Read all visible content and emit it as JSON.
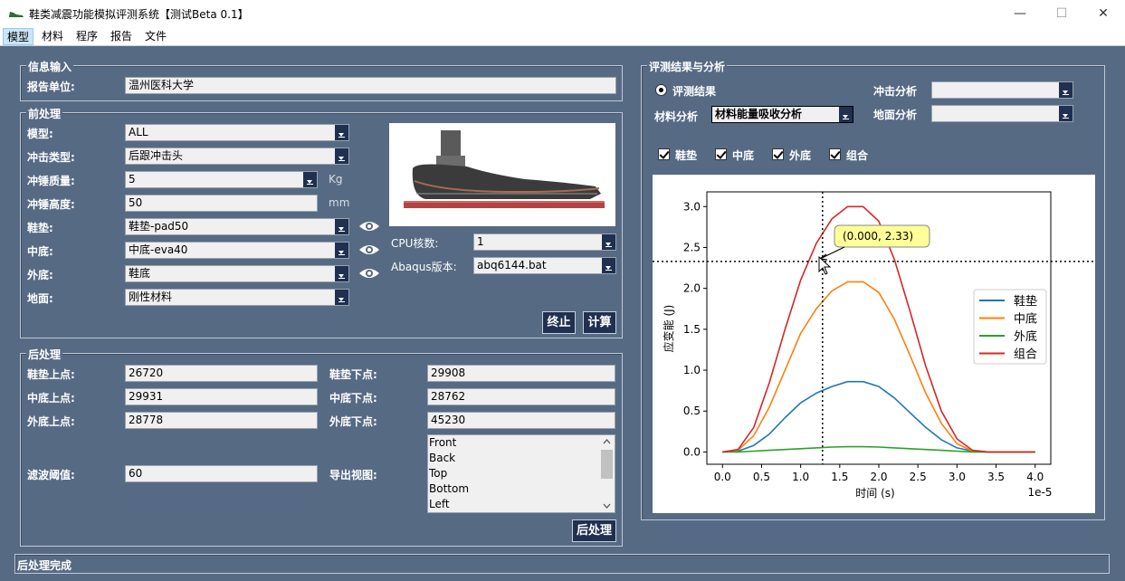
{
  "window": {
    "title": "鞋类减震功能模拟评测系统【测试Beta 0.1】",
    "minimize": "—",
    "maximize": "☐",
    "close": "✕"
  },
  "menu": [
    "模型",
    "材料",
    "程序",
    "报告",
    "文件"
  ],
  "info": {
    "group_title": "信息输入",
    "unit_label": "报告单位:",
    "unit_value": "温州医科大学"
  },
  "pre": {
    "group_title": "前处理",
    "model_label": "模型:",
    "model_value": "ALL",
    "impact_label": "冲击类型:",
    "impact_value": "后跟冲击头",
    "mass_label": "冲锤质量:",
    "mass_value": "5",
    "mass_unit": "Kg",
    "height_label": "冲锤高度:",
    "height_value": "50",
    "height_unit": "mm",
    "insole_label": "鞋垫:",
    "insole_value": "鞋垫-pad50",
    "midsole_label": "中底:",
    "midsole_value": "中底-eva40",
    "outsole_label": "外底:",
    "outsole_value": "鞋底",
    "ground_label": "地面:",
    "ground_value": "刚性材料",
    "cpu_label": "CPU核数:",
    "cpu_value": "1",
    "abaqus_label": "Abaqus版本:",
    "abaqus_value": "abq6144.bat",
    "stop_button": "终止",
    "calc_button": "计算"
  },
  "post": {
    "group_title": "后处理",
    "insole_top_label": "鞋垫上点:",
    "insole_top_value": "26720",
    "insole_bottom_label": "鞋垫下点:",
    "insole_bottom_value": "29908",
    "mid_top_label": "中底上点:",
    "mid_top_value": "29931",
    "mid_bottom_label": "中底下点:",
    "mid_bottom_value": "28762",
    "out_top_label": "外底上点:",
    "out_top_value": "28778",
    "out_bottom_label": "外底下点:",
    "out_bottom_value": "45230",
    "filter_label": "滤波阈值:",
    "filter_value": "60",
    "view_label": "导出视图:",
    "views": [
      "Front",
      "Back",
      "Top",
      "Bottom",
      "Left"
    ],
    "post_button": "后处理"
  },
  "results": {
    "group_title": "评测结果与分析",
    "radio_label": "评测结果",
    "impact_label": "冲击分析",
    "impact_value": "",
    "material_label": "材料分析",
    "material_value": "材料能量吸收分析",
    "ground_label": "地面分析",
    "ground_value": "",
    "checks": [
      "鞋垫",
      "中底",
      "外底",
      "组合"
    ],
    "tooltip": "(0.000,  2.33)"
  },
  "status": "后处理完成",
  "colors": {
    "insole": "#1f77b4",
    "midsole": "#ff7f0e",
    "outsole": "#2ca02c",
    "combined": "#d62728",
    "button": "#1f3050",
    "background": "#566a84"
  },
  "chart_data": {
    "type": "line",
    "xlabel": "时间 (s)",
    "ylabel": "应变能 (J)",
    "x_multiplier": "1e-5",
    "xlim": [
      -0.2,
      4.2
    ],
    "ylim": [
      -0.15,
      3.18
    ],
    "xticks": [
      "0.0",
      "0.5",
      "1.0",
      "1.5",
      "2.0",
      "2.5",
      "3.0",
      "3.5",
      "4.0"
    ],
    "yticks": [
      "0.0",
      "0.5",
      "1.0",
      "1.5",
      "2.0",
      "2.5",
      "3.0"
    ],
    "x": [
      0.0,
      0.2,
      0.4,
      0.6,
      0.8,
      1.0,
      1.2,
      1.4,
      1.6,
      1.8,
      2.0,
      2.2,
      2.4,
      2.6,
      2.8,
      3.0,
      3.2,
      3.4,
      3.6,
      3.8,
      4.0
    ],
    "legend_position": "center-right",
    "crosshair": {
      "x": 1.28,
      "y": 2.33
    },
    "series": [
      {
        "name": "鞋垫",
        "values": [
          0.0,
          0.01,
          0.08,
          0.22,
          0.42,
          0.6,
          0.72,
          0.8,
          0.86,
          0.86,
          0.8,
          0.66,
          0.48,
          0.3,
          0.15,
          0.05,
          0.01,
          0.0,
          0.0,
          0.0,
          0.0
        ]
      },
      {
        "name": "中底",
        "values": [
          0.0,
          0.02,
          0.2,
          0.55,
          1.0,
          1.45,
          1.75,
          1.97,
          2.08,
          2.08,
          1.95,
          1.62,
          1.18,
          0.72,
          0.35,
          0.1,
          0.01,
          0.0,
          0.0,
          0.0,
          0.0
        ]
      },
      {
        "name": "外底",
        "values": [
          0.0,
          0.0,
          0.01,
          0.02,
          0.03,
          0.04,
          0.05,
          0.06,
          0.065,
          0.065,
          0.06,
          0.05,
          0.04,
          0.03,
          0.02,
          0.01,
          0.0,
          0.0,
          0.0,
          0.0,
          0.0
        ]
      },
      {
        "name": "组合",
        "values": [
          0.0,
          0.03,
          0.3,
          0.85,
          1.5,
          2.1,
          2.55,
          2.85,
          3.0,
          3.0,
          2.82,
          2.35,
          1.72,
          1.05,
          0.5,
          0.16,
          0.02,
          0.0,
          0.0,
          0.0,
          0.0
        ]
      }
    ]
  }
}
